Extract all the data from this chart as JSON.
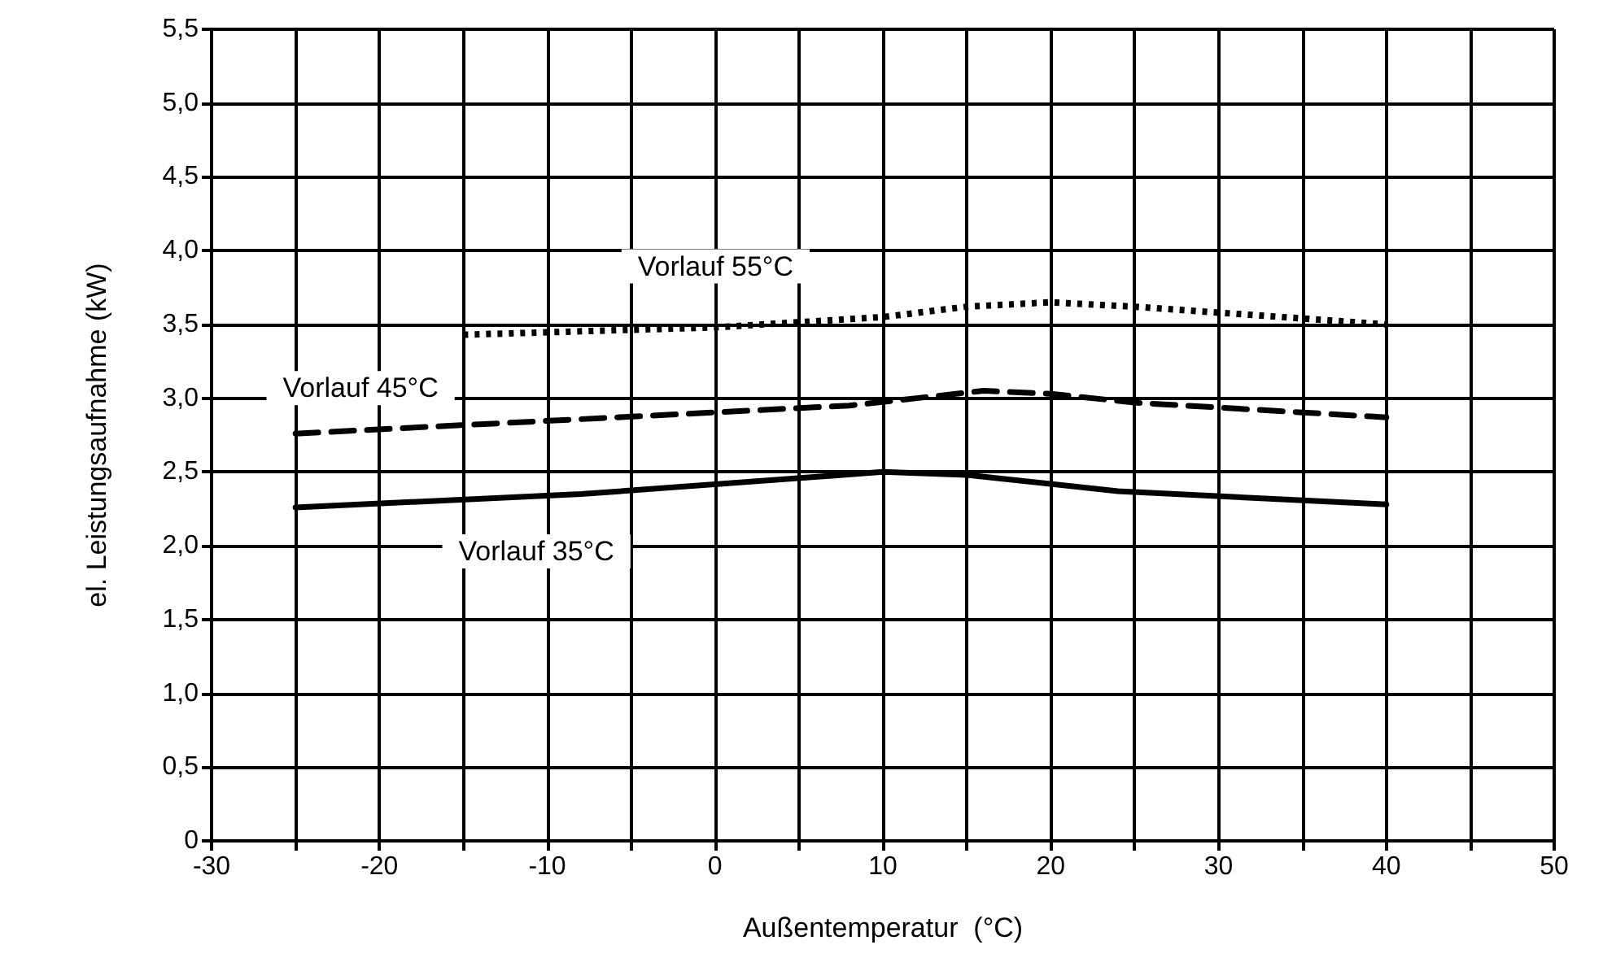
{
  "chart_data": {
    "type": "line",
    "xlabel": "Außentemperatur  (°C)",
    "ylabel": "el. Leistungsaufnahme (kW)",
    "xlim": [
      -30,
      50
    ],
    "xticks": [
      -30,
      {
        "value": -25,
        "label": null
      },
      -20,
      {
        "value": -15,
        "label": null
      },
      -10,
      {
        "value": -5,
        "label": null
      },
      0,
      {
        "value": 5,
        "label": null
      },
      10,
      {
        "value": 15,
        "label": null
      },
      20,
      {
        "value": 25,
        "label": null
      },
      30,
      {
        "value": 35,
        "label": null
      },
      40,
      {
        "value": 45,
        "label": null
      },
      50
    ],
    "ylim": [
      0,
      5.5
    ],
    "yticks": [
      0,
      {
        "value": 0.5,
        "label": "0,5"
      },
      {
        "value": 1,
        "label": "1,0"
      },
      {
        "value": 1.5,
        "label": "1,5"
      },
      {
        "value": 2,
        "label": "2,0"
      },
      {
        "value": 2.5,
        "label": "2,5"
      },
      {
        "value": 3,
        "label": "3,0"
      },
      {
        "value": 3.5,
        "label": "3,5"
      },
      {
        "value": 4,
        "label": "4,0"
      },
      {
        "value": 4.5,
        "label": "4,5"
      },
      {
        "value": 5,
        "label": "5,0"
      },
      {
        "value": 5.5,
        "label": "5,5"
      }
    ],
    "grid": true,
    "legend": false,
    "marker": "none",
    "series": [
      {
        "name": "Vorlauf 35°C",
        "color": "#000000",
        "line_style": "solid",
        "x": [
          -25,
          -8,
          10,
          15,
          24,
          40
        ],
        "values": [
          2.26,
          2.35,
          2.5,
          2.48,
          2.37,
          2.28
        ]
      },
      {
        "name": "Vorlauf 45°C",
        "color": "#000000",
        "line_style": "dashed",
        "x": [
          -25,
          8,
          16,
          20,
          25,
          40
        ],
        "values": [
          2.76,
          2.95,
          3.05,
          3.03,
          2.97,
          2.87
        ]
      },
      {
        "name": "Vorlauf 55°C",
        "color": "#000000",
        "line_style": "dotted",
        "x": [
          -15,
          0,
          10,
          15,
          20,
          25,
          40
        ],
        "values": [
          3.43,
          3.48,
          3.55,
          3.62,
          3.65,
          3.62,
          3.5
        ]
      }
    ]
  }
}
